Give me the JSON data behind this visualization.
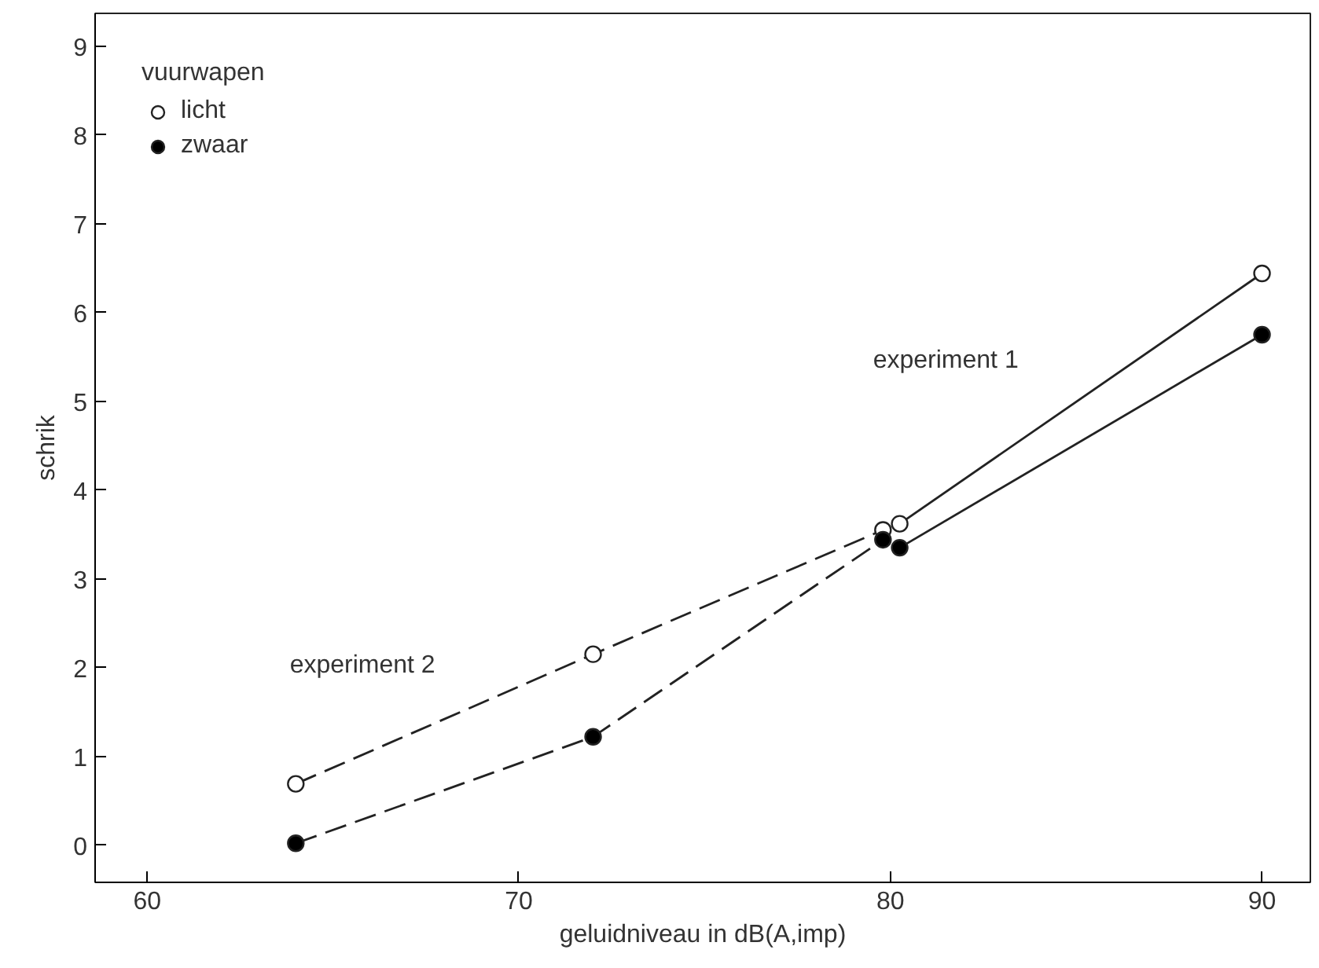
{
  "chart_data": {
    "type": "line",
    "xlabel": "geluidniveau in dB(A,imp)",
    "ylabel": "schrik",
    "legend_title": "vuurwapen",
    "legend": "top left",
    "marker": "circle",
    "grid": false,
    "xlim": [
      58.6,
      91.3
    ],
    "ylim": [
      -0.42,
      9.37
    ],
    "xticks": [
      60,
      70,
      80,
      90
    ],
    "yticks": [
      0,
      1,
      2,
      3,
      4,
      5,
      6,
      7,
      8,
      9
    ],
    "series": [
      {
        "name": "licht",
        "color": "#ffffff",
        "line_style": "solid",
        "x": [
          80.25,
          90
        ],
        "values": [
          3.62,
          6.44
        ]
      },
      {
        "name": "zwaar",
        "color": "#000000",
        "line_style": "solid",
        "x": [
          80.25,
          90
        ],
        "values": [
          3.35,
          5.75
        ]
      },
      {
        "color": "#ffffff",
        "line_style": "dashed",
        "x": [
          64,
          72,
          79.8
        ],
        "values": [
          0.69,
          2.15,
          3.55
        ]
      },
      {
        "color": "#000000",
        "line_style": "dashed",
        "x": [
          64,
          72,
          79.8
        ],
        "values": [
          0.02,
          1.22,
          3.44
        ]
      }
    ],
    "annotations": [
      "experiment 1",
      "experiment 2"
    ]
  }
}
